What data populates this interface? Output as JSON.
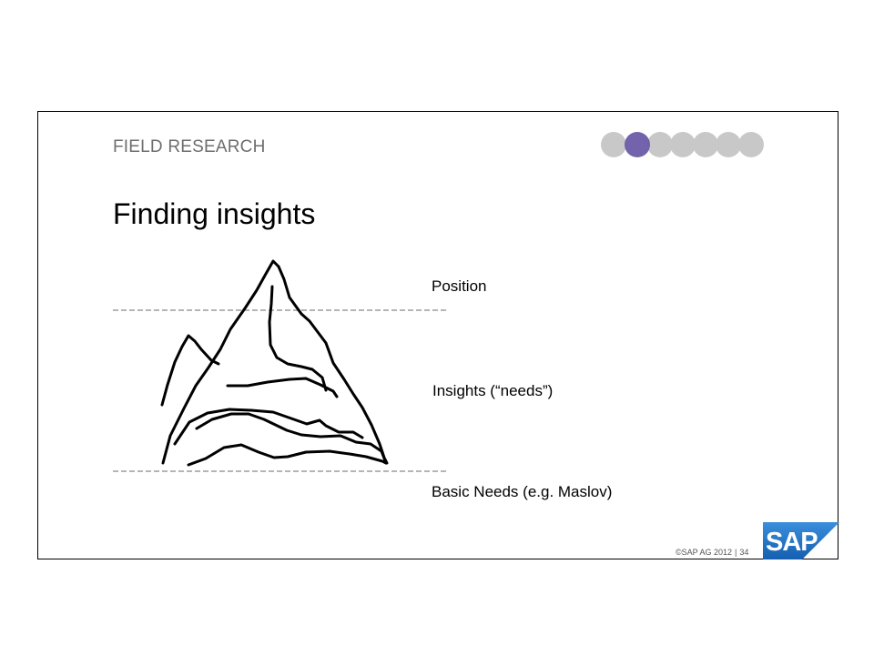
{
  "slide": {
    "section_title": "FIELD RESEARCH",
    "title": "Finding insights",
    "progress": {
      "total": 7,
      "active_index": 1
    },
    "labels": {
      "position": "Position",
      "insights": "Insights (“needs”)",
      "basic_needs": "Basic Needs (e.g. Maslov)"
    },
    "footer": {
      "copyright": "©SAP AG 2012",
      "separator": "|",
      "page_number": "34"
    },
    "logo_text": "SAP",
    "colors": {
      "active_dot": "#6b5ba8",
      "inactive_dot": "#c8c8c8",
      "logo_blue": "#1d6fc4"
    }
  }
}
